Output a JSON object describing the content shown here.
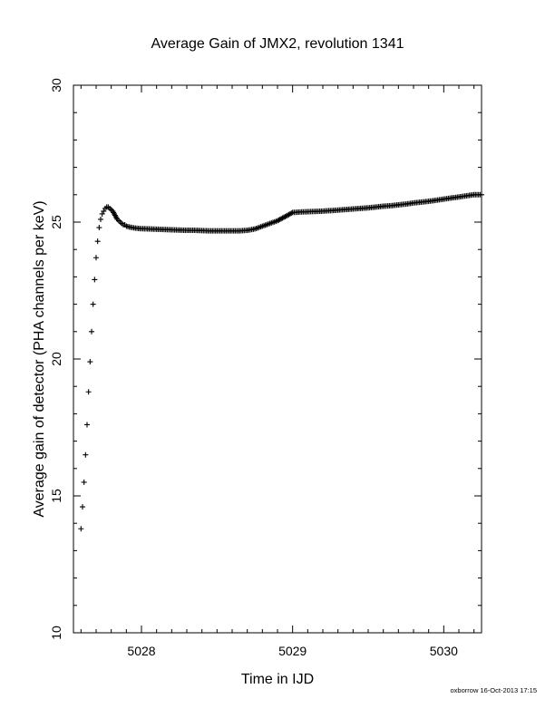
{
  "chart_data": {
    "type": "scatter",
    "title": "Average Gain of JMX2, revolution 1341",
    "xlabel": "Time in IJD",
    "ylabel": "Average gain of detector (PHA channels per keV)",
    "xlim": [
      5027.55,
      5030.25
    ],
    "ylim": [
      10,
      30
    ],
    "xticks": [
      5028,
      5029,
      5030
    ],
    "yticks": [
      10,
      15,
      20,
      25,
      30
    ],
    "marker": "+",
    "color": "#000000",
    "grid": false,
    "series": [
      {
        "x": [
          5027.6,
          5027.61,
          5027.62,
          5027.63,
          5027.64,
          5027.65,
          5027.66,
          5027.67,
          5027.68,
          5027.69,
          5027.7,
          5027.71,
          5027.72,
          5027.73,
          5027.74,
          5027.75,
          5027.76,
          5027.77,
          5027.78,
          5027.79,
          5027.8,
          5027.81,
          5027.82,
          5027.83,
          5027.84,
          5027.85,
          5027.86,
          5027.87,
          5027.88,
          5027.89,
          5027.9,
          5027.92,
          5027.94,
          5027.96,
          5027.98,
          5028.0,
          5028.05,
          5028.1,
          5028.15,
          5028.2,
          5028.25,
          5028.3,
          5028.35,
          5028.4,
          5028.45,
          5028.5,
          5028.55,
          5028.6,
          5028.65,
          5028.7,
          5028.75,
          5028.8,
          5028.85,
          5028.9,
          5028.95,
          5029.0,
          5029.05,
          5029.1,
          5029.15,
          5029.2,
          5029.25,
          5029.3,
          5029.35,
          5029.4,
          5029.45,
          5029.5,
          5029.55,
          5029.6,
          5029.65,
          5029.7,
          5029.75,
          5029.8,
          5029.85,
          5029.9,
          5029.95,
          5030.0,
          5030.05,
          5030.1,
          5030.15,
          5030.2,
          5030.25
        ],
        "y": [
          13.8,
          14.6,
          15.5,
          16.5,
          17.6,
          18.8,
          19.9,
          21.0,
          22.0,
          22.9,
          23.7,
          24.3,
          24.8,
          25.1,
          25.3,
          25.4,
          25.5,
          25.55,
          25.55,
          25.5,
          25.45,
          25.4,
          25.3,
          25.2,
          25.1,
          25.05,
          25.0,
          24.95,
          24.9,
          24.9,
          24.85,
          24.82,
          24.8,
          24.78,
          24.77,
          24.76,
          24.75,
          24.74,
          24.73,
          24.72,
          24.71,
          24.7,
          24.7,
          24.69,
          24.68,
          24.68,
          24.68,
          24.68,
          24.68,
          24.7,
          24.75,
          24.85,
          24.95,
          25.05,
          25.2,
          25.35,
          25.37,
          25.38,
          25.39,
          25.4,
          25.42,
          25.44,
          25.46,
          25.48,
          25.5,
          25.52,
          25.55,
          25.58,
          25.6,
          25.63,
          25.66,
          25.7,
          25.73,
          25.76,
          25.8,
          25.84,
          25.88,
          25.92,
          25.96,
          26.0,
          26.0
        ]
      }
    ]
  },
  "footer": {
    "text": "oxborrow 16-Oct-2013 17:15"
  }
}
